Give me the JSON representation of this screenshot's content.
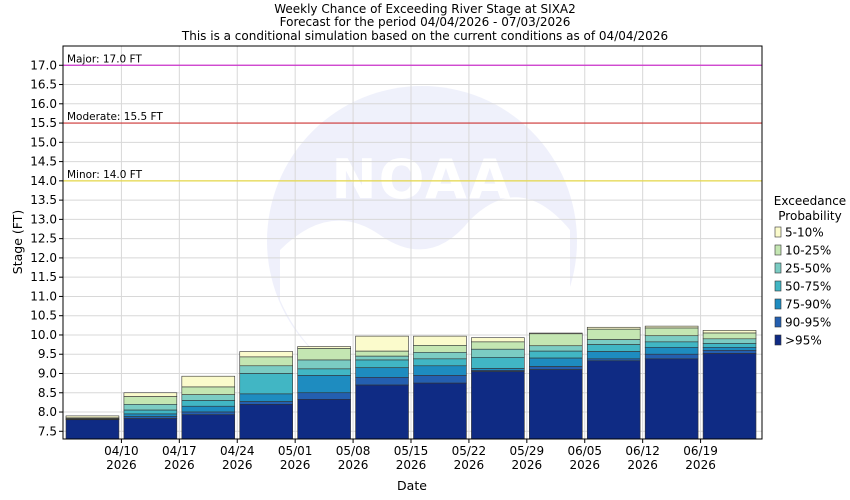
{
  "chart_data": {
    "type": "bar",
    "title_lines": [
      "Weekly Chance of Exceeding River Stage at SIXA2",
      "Forecast for the period 04/04/2026 - 07/03/2026",
      "This is a conditional simulation based on the current conditions as of 04/04/2026"
    ],
    "xlabel": "Date",
    "ylabel": "Stage (FT)",
    "ylim": [
      7.3,
      17.5
    ],
    "yticks": [
      "7.5",
      "8.0",
      "8.5",
      "9.0",
      "9.5",
      "10.0",
      "10.5",
      "11.0",
      "11.5",
      "12.0",
      "12.5",
      "13.0",
      "13.5",
      "14.0",
      "14.5",
      "15.0",
      "15.5",
      "16.0",
      "16.5",
      "17.0"
    ],
    "xticks": [
      {
        "date": "04/10",
        "year": "2026"
      },
      {
        "date": "04/17",
        "year": "2026"
      },
      {
        "date": "04/24",
        "year": "2026"
      },
      {
        "date": "05/01",
        "year": "2026"
      },
      {
        "date": "05/08",
        "year": "2026"
      },
      {
        "date": "05/15",
        "year": "2026"
      },
      {
        "date": "05/22",
        "year": "2026"
      },
      {
        "date": "05/29",
        "year": "2026"
      },
      {
        "date": "06/05",
        "year": "2026"
      },
      {
        "date": "06/12",
        "year": "2026"
      },
      {
        "date": "06/19",
        "year": "2026"
      }
    ],
    "thresholds": [
      {
        "label": "Major: 17.0 FT",
        "value": 17.0,
        "color": "#cc33cc"
      },
      {
        "label": "Moderate: 15.5 FT",
        "value": 15.5,
        "color": "#cc3333"
      },
      {
        "label": "Minor: 14.0 FT",
        "value": 14.0,
        "color": "#e6d84a"
      }
    ],
    "legend": {
      "title_lines": [
        "Exceedance",
        "Probability"
      ],
      "placement": "right",
      "items": [
        {
          "label": "5-10%",
          "color": "#fbfbcc"
        },
        {
          "label": "10-25%",
          "color": "#c4e6b2"
        },
        {
          "label": "25-50%",
          "color": "#7bccc3"
        },
        {
          "label": "50-75%",
          "color": "#41b6c4"
        },
        {
          "label": "75-90%",
          "color": "#1e8cc0"
        },
        {
          "label": "90-95%",
          "color": "#245fb0"
        },
        {
          "label": ">95%",
          "color": "#0f2b84"
        }
      ]
    },
    "series_order": [
      "5-10%",
      "10-25%",
      "25-50%",
      "50-75%",
      "75-90%",
      "90-95%",
      ">95%"
    ],
    "weeks": [
      {
        "values": [
          7.9,
          7.85,
          7.83,
          7.82,
          7.81,
          7.8,
          7.8
        ]
      },
      {
        "values": [
          8.5,
          8.4,
          8.2,
          8.05,
          7.95,
          7.88,
          7.83
        ]
      },
      {
        "values": [
          8.93,
          8.65,
          8.45,
          8.3,
          8.15,
          8.0,
          7.93
        ]
      },
      {
        "values": [
          9.57,
          9.43,
          9.2,
          9.0,
          8.47,
          8.27,
          8.2
        ]
      },
      {
        "values": [
          9.7,
          9.65,
          9.35,
          9.12,
          8.95,
          8.5,
          8.33
        ]
      },
      {
        "values": [
          9.97,
          9.58,
          9.45,
          9.35,
          9.15,
          8.9,
          8.7
        ]
      },
      {
        "values": [
          9.97,
          9.73,
          9.55,
          9.38,
          9.2,
          8.95,
          8.75
        ]
      },
      {
        "values": [
          9.93,
          9.82,
          9.63,
          9.42,
          9.13,
          9.08,
          9.05
        ]
      },
      {
        "values": [
          10.05,
          10.03,
          9.72,
          9.58,
          9.4,
          9.18,
          9.1
        ]
      },
      {
        "values": [
          10.2,
          10.15,
          9.88,
          9.75,
          9.57,
          9.38,
          9.33
        ]
      },
      {
        "values": [
          10.23,
          10.18,
          9.98,
          9.82,
          9.68,
          9.5,
          9.38
        ]
      },
      {
        "values": [
          10.12,
          10.05,
          9.9,
          9.78,
          9.68,
          9.6,
          9.52
        ]
      }
    ]
  }
}
